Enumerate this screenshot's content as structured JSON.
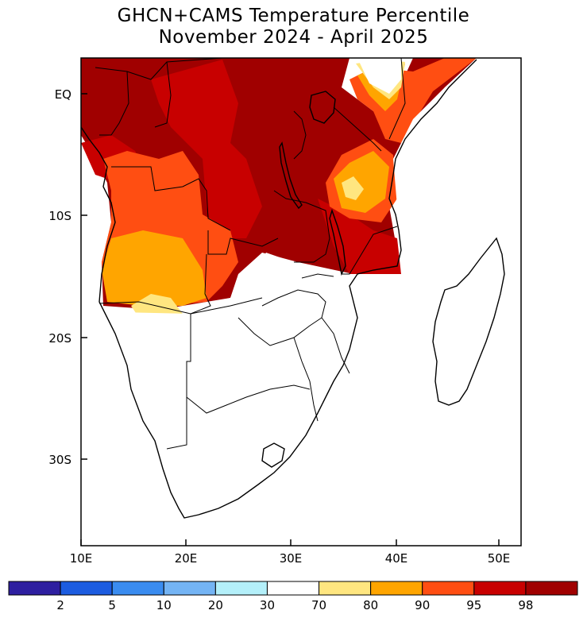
{
  "title": "GHCN+CAMS Temperature Percentile",
  "subtitle": "November 2024 - April 2025",
  "axes": {
    "y_ticks": [
      {
        "label": "EQ",
        "lat": 0
      },
      {
        "label": "10S",
        "lat": -10
      },
      {
        "label": "20S",
        "lat": -20
      },
      {
        "label": "30S",
        "lat": -30
      }
    ],
    "x_ticks": [
      {
        "label": "10E",
        "lon": 10
      },
      {
        "label": "20E",
        "lon": 20
      },
      {
        "label": "30E",
        "lon": 30
      },
      {
        "label": "40E",
        "lon": 40
      },
      {
        "label": "50E",
        "lon": 50
      }
    ]
  },
  "colorbar": {
    "colors": [
      "#2e1fa0",
      "#1c5ce0",
      "#3a8cf0",
      "#74b4f4",
      "#b4f0fa",
      "#ffffff",
      "#ffe680",
      "#ffa500",
      "#ff4e12",
      "#c80000",
      "#a00000"
    ],
    "labels": [
      "2",
      "5",
      "10",
      "20",
      "30",
      "70",
      "80",
      "90",
      "95",
      "98"
    ]
  }
}
